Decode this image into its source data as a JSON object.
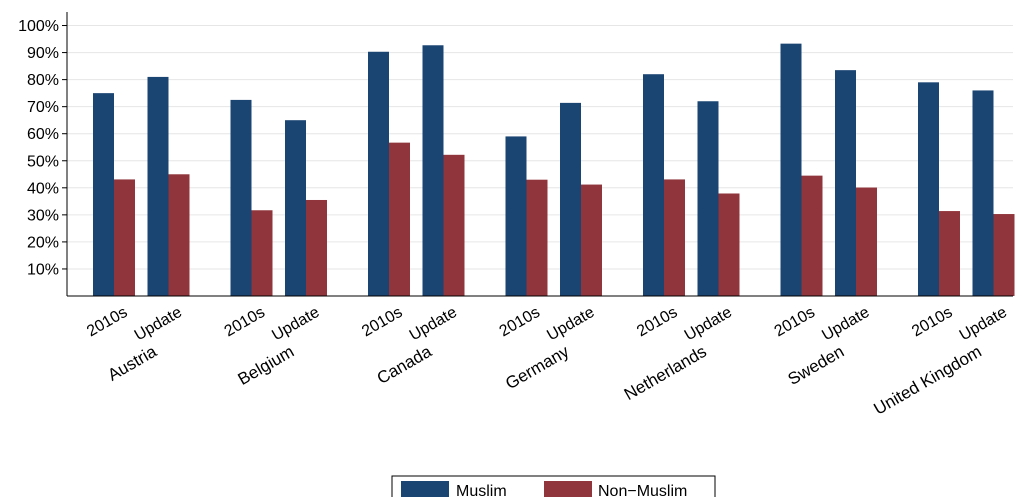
{
  "chart_data": {
    "type": "bar",
    "groups": [
      "Austria",
      "Belgium",
      "Canada",
      "Germany",
      "Netherlands",
      "Sweden",
      "United Kingdom"
    ],
    "categories": [
      "2010s",
      "Update"
    ],
    "y_ticks": [
      "10%",
      "20%",
      "30%",
      "40%",
      "50%",
      "60%",
      "70%",
      "80%",
      "90%",
      "100%"
    ],
    "ylim": [
      0,
      105
    ],
    "series": [
      {
        "name": "Muslim",
        "color": "#1a4472",
        "values": [
          [
            75,
            81
          ],
          [
            72.5,
            65
          ],
          [
            90.3,
            92.7
          ],
          [
            59,
            71.4
          ],
          [
            82,
            72
          ],
          [
            93.3,
            83.5
          ],
          [
            79,
            76
          ]
        ]
      },
      {
        "name": "Non−Muslim",
        "color": "#90353b",
        "values": [
          [
            43.1,
            45
          ],
          [
            31.7,
            35.5
          ],
          [
            56.7,
            52.2
          ],
          [
            43,
            41.2
          ],
          [
            43.1,
            37.9
          ],
          [
            44.5,
            40.1
          ],
          [
            31.4,
            30.3
          ]
        ]
      }
    ],
    "grid": true,
    "legend_position": "bottom"
  }
}
